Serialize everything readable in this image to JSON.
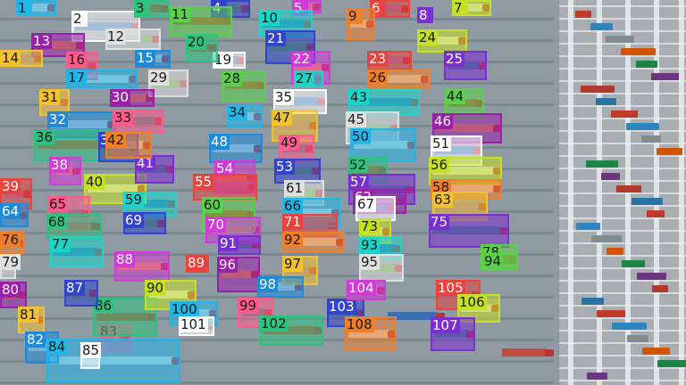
{
  "scene": {
    "subject": "aerial-view-container-terminal",
    "background_color": "#8f9aa3",
    "yard_color": "#a7adb1"
  },
  "labels": [
    "1",
    "2",
    "3",
    "4",
    "5",
    "6",
    "7",
    "8",
    "9",
    "10",
    "11",
    "12",
    "13",
    "14",
    "15",
    "16",
    "17",
    "19",
    "20",
    "21",
    "22",
    "23",
    "24",
    "25",
    "26",
    "27",
    "28",
    "29",
    "30",
    "31",
    "32",
    "33",
    "34",
    "35",
    "36",
    "37",
    "38",
    "39",
    "40",
    "41",
    "42",
    "43",
    "44",
    "45",
    "46",
    "47",
    "48",
    "49",
    "50",
    "51",
    "52",
    "53",
    "54",
    "55",
    "56",
    "57",
    "58",
    "59",
    "60",
    "61",
    "62",
    "63",
    "64",
    "65",
    "66",
    "67",
    "68",
    "69",
    "70",
    "71",
    "73",
    "75",
    "76",
    "77",
    "78",
    "79",
    "80",
    "81",
    "82",
    "83",
    "84",
    "85",
    "86",
    "87",
    "88",
    "89",
    "90",
    "91",
    "92",
    "93",
    "94",
    "95",
    "96",
    "97",
    "98",
    "99",
    "100",
    "101",
    "102",
    "103",
    "104",
    "105",
    "106",
    "107",
    "108"
  ],
  "palette": [
    "#22b5e6",
    "#ffffff",
    "#2ec27e",
    "#3344cc",
    "#d13bd8",
    "#e8433c",
    "#c6e024",
    "#7a2fd0",
    "#f07f2a",
    "#1ad6c8",
    "#5bd04a",
    "#e0e0e0",
    "#9b1fa8",
    "#f2c230",
    "#1f8bd8",
    "#ff5c8d"
  ]
}
